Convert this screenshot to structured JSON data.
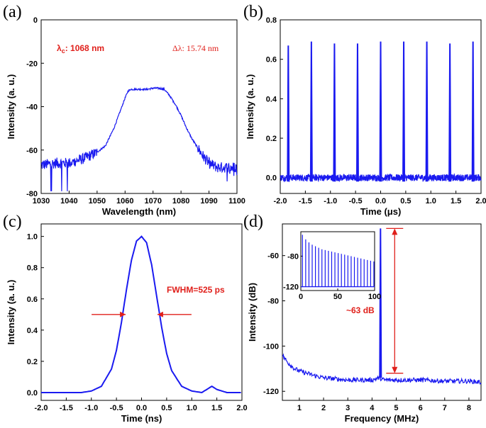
{
  "colors": {
    "series": "#1a1af0",
    "annotation": "#e0201b",
    "axis": "#000000"
  },
  "chart_data": [
    {
      "panel": "(a)",
      "type": "line",
      "xlabel": "Wavelength (nm)",
      "ylabel": "Intensity (a. u.)",
      "xlim": [
        1030,
        1100
      ],
      "ylim": [
        -80,
        0
      ],
      "xticks": [
        "1030",
        "1040",
        "1050",
        "1060",
        "1070",
        "1080",
        "1090",
        "1100"
      ],
      "yticks": [
        "-80",
        "-60",
        "-40",
        "-20",
        "0"
      ],
      "annotations": {
        "center_label_sym": "λ",
        "center_label_sub": "c",
        "center_label_value": ": 1068 nm",
        "bandwidth_label_sym": "Δλ",
        "bandwidth_label_value": ": 15.74 nm"
      },
      "series": [
        {
          "x": [
            1030,
            1035,
            1040,
            1045,
            1050,
            1053,
            1056,
            1058,
            1060,
            1061,
            1062,
            1064,
            1066,
            1068,
            1070,
            1072,
            1074,
            1076,
            1078,
            1080,
            1082,
            1084,
            1086,
            1088,
            1090,
            1093,
            1096,
            1100
          ],
          "y": [
            -67,
            -66,
            -66,
            -64,
            -61,
            -58,
            -50,
            -43,
            -36,
            -33,
            -32,
            -32,
            -32,
            -32,
            -31.5,
            -31.5,
            -32,
            -35,
            -39,
            -44,
            -50,
            -55,
            -59,
            -63,
            -66,
            -68,
            -68,
            -68
          ]
        }
      ]
    },
    {
      "panel": "(b)",
      "type": "line",
      "xlabel": "Time (μs)",
      "ylabel": "Intensity (a. u.)",
      "xlim": [
        -2.0,
        2.0
      ],
      "ylim": [
        -0.08,
        0.8
      ],
      "xticks": [
        "-2.0",
        "-1.5",
        "-1.0",
        "-0.5",
        "0.0",
        "0.5",
        "1.0",
        "1.5",
        "2.0"
      ],
      "yticks": [
        "0.0",
        "0.2",
        "0.4",
        "0.6",
        "0.8"
      ],
      "pulses": {
        "x": [
          -1.84,
          -1.38,
          -0.92,
          -0.46,
          0.0,
          0.46,
          0.92,
          1.38,
          1.84
        ],
        "y": [
          0.67,
          0.69,
          0.68,
          0.68,
          0.69,
          0.69,
          0.69,
          0.68,
          0.69
        ]
      }
    },
    {
      "panel": "(c)",
      "type": "line",
      "xlabel": "Time (ns)",
      "ylabel": "Intensity (a. u.)",
      "xlim": [
        -2.0,
        2.0
      ],
      "ylim": [
        -0.05,
        1.08
      ],
      "xticks": [
        "-2.0",
        "-1.5",
        "-1.0",
        "-0.5",
        "0.0",
        "0.5",
        "1.0",
        "1.5",
        "2.0"
      ],
      "yticks": [
        "0.0",
        "0.2",
        "0.4",
        "0.6",
        "0.8",
        "1.0"
      ],
      "annotations": {
        "fwhm": "FWHM=525 ps"
      },
      "series": [
        {
          "x": [
            -2.0,
            -1.5,
            -1.2,
            -1.0,
            -0.8,
            -0.6,
            -0.5,
            -0.4,
            -0.3,
            -0.2,
            -0.1,
            0.0,
            0.1,
            0.2,
            0.3,
            0.4,
            0.5,
            0.6,
            0.8,
            1.0,
            1.2,
            1.3,
            1.4,
            1.5,
            1.7,
            2.0
          ],
          "y": [
            0.0,
            0.0,
            0.0,
            0.01,
            0.04,
            0.15,
            0.27,
            0.45,
            0.66,
            0.85,
            0.97,
            1.0,
            0.96,
            0.82,
            0.62,
            0.42,
            0.25,
            0.14,
            0.04,
            0.01,
            0.0,
            0.02,
            0.04,
            0.02,
            0.0,
            0.0
          ]
        }
      ]
    },
    {
      "panel": "(d)",
      "type": "line",
      "xlabel": "Frequency (MHz)",
      "ylabel": "Intensity (dB)",
      "xlim": [
        0.3,
        8.5
      ],
      "ylim": [
        -124,
        -46
      ],
      "xticks": [
        "1",
        "2",
        "3",
        "4",
        "5",
        "6",
        "7",
        "8"
      ],
      "yticks": [
        "-120",
        "-100",
        "-80",
        "-60"
      ],
      "annotations": {
        "snr": "~63 dB"
      },
      "peak": {
        "x": 4.35,
        "y": -48
      },
      "series": [
        {
          "x": [
            0.3,
            0.5,
            0.8,
            1.0,
            1.3,
            1.6,
            2.0,
            2.5,
            3.0,
            3.5,
            4.0,
            4.3,
            4.5,
            5.0,
            6.0,
            7.0,
            8.0,
            8.5
          ],
          "y": [
            -104,
            -107,
            -110,
            -111,
            -112,
            -113,
            -114,
            -114.5,
            -115,
            -115,
            -115,
            -114,
            -115,
            -115,
            -115,
            -115.5,
            -115.5,
            -116
          ]
        }
      ],
      "inset": {
        "xticks": [
          "0",
          "50",
          "100"
        ],
        "yticks": [
          "-120",
          "-80"
        ],
        "xlim": [
          0,
          100
        ],
        "ylim": [
          -125,
          -48
        ],
        "harmonics_x": [
          2.2,
          6.6,
          11.0,
          15.4,
          19.8,
          24.2,
          28.6,
          33.0,
          37.4,
          41.8,
          46.2,
          50.6,
          55.0,
          59.4,
          63.8,
          68.2,
          72.6,
          77.0,
          81.4,
          85.8,
          90.2,
          94.6,
          99.0
        ],
        "harmonics_y": [
          -52,
          -58,
          -62,
          -65,
          -67,
          -69,
          -71,
          -72,
          -73,
          -74,
          -75,
          -76,
          -77,
          -78,
          -79,
          -80,
          -81,
          -82,
          -83,
          -84,
          -85,
          -86,
          -87
        ],
        "floor": -120
      }
    }
  ]
}
